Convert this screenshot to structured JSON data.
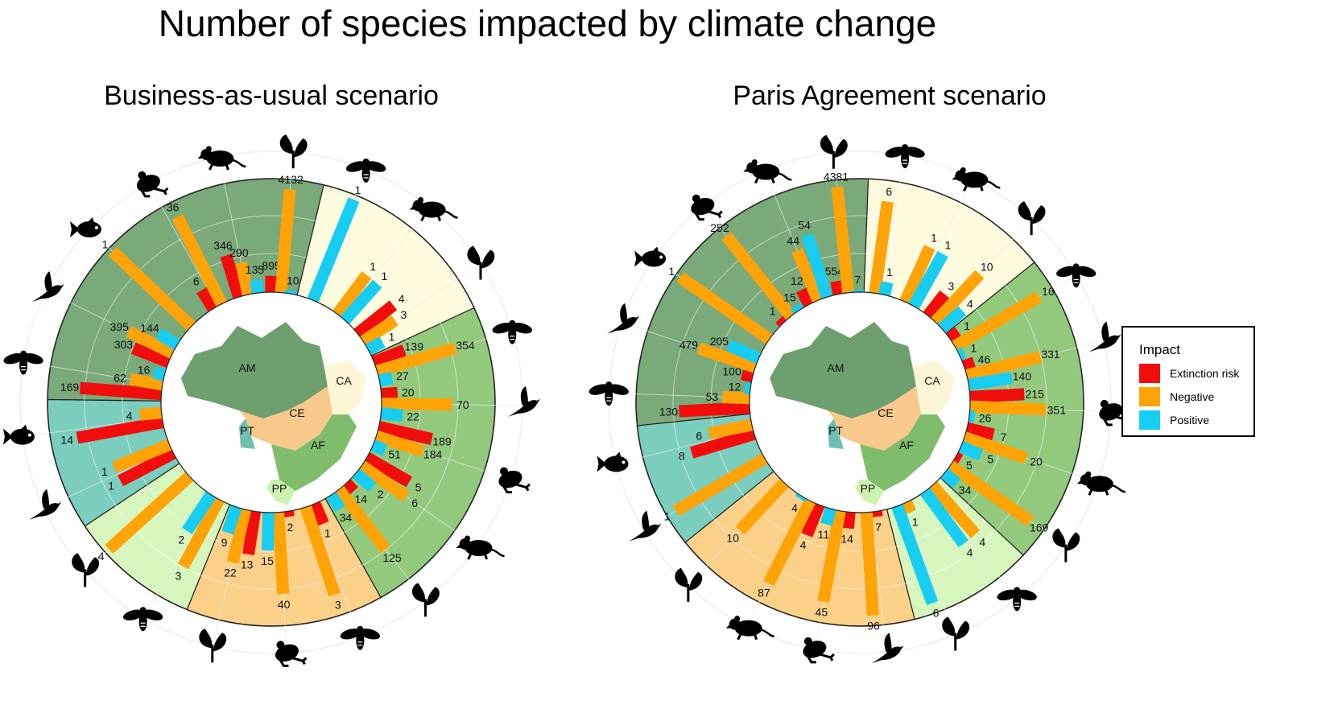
{
  "title": "Number of species impacted by climate change",
  "legend": {
    "title": "Impact",
    "items": [
      {
        "key": "extinction",
        "label": "Extinction risk",
        "color": "#f20d0d"
      },
      {
        "key": "negative",
        "label": "Negative",
        "color": "#ffa306"
      },
      {
        "key": "positive",
        "label": "Positive",
        "color": "#17cdf2"
      }
    ]
  },
  "regions": {
    "AM": {
      "label": "AM",
      "sector_color": "#7aa97a",
      "map_color": "#6e9f6e"
    },
    "CA": {
      "label": "CA",
      "sector_color": "#fefbdf",
      "map_color": "#fcf6d6"
    },
    "AF": {
      "label": "AF",
      "sector_color": "#93c97d",
      "map_color": "#7fbd6c"
    },
    "CE": {
      "label": "CE",
      "sector_color": "#fbd089",
      "map_color": "#f8c98a"
    },
    "PP": {
      "label": "PP",
      "sector_color": "#d6f6bd",
      "map_color": "#cdf2b1"
    },
    "PT": {
      "label": "PT",
      "sector_color": "#7bcdbd",
      "map_color": "#6fbfb0"
    }
  },
  "chart_data": [
    {
      "type": "radial-bar",
      "title": "Business-as-usual scenario",
      "groups": [
        {
          "region": "AM",
          "taxon": "plant",
          "bars": [
            {
              "impact": "extinction",
              "value": "895",
              "share": 0.15
            },
            {
              "impact": "negative",
              "value": "4132",
              "share": 0.95
            },
            {
              "impact": "positive",
              "value": "10",
              "share": 0.03
            }
          ]
        },
        {
          "region": "CA",
          "taxon": "bee",
          "bars": [
            {
              "impact": "positive",
              "value": "1",
              "share": 1.0
            }
          ]
        },
        {
          "region": "CA",
          "taxon": "mammal",
          "bars": [
            {
              "impact": "negative",
              "value": "1",
              "share": 0.45
            },
            {
              "impact": "positive",
              "value": "1",
              "share": 0.45
            }
          ]
        },
        {
          "region": "CA",
          "taxon": "plant",
          "bars": [
            {
              "impact": "extinction",
              "value": "4",
              "share": 0.42
            },
            {
              "impact": "negative",
              "value": "3",
              "share": 0.35
            },
            {
              "impact": "positive",
              "value": "1",
              "share": 0.15
            }
          ]
        },
        {
          "region": "AF",
          "taxon": "bee",
          "bars": [
            {
              "impact": "extinction",
              "value": "139",
              "share": 0.3
            },
            {
              "impact": "negative",
              "value": "354",
              "share": 0.75
            },
            {
              "impact": "positive",
              "value": "27",
              "share": 0.12
            }
          ]
        },
        {
          "region": "AF",
          "taxon": "bird",
          "bars": [
            {
              "impact": "extinction",
              "value": "20",
              "share": 0.15
            },
            {
              "impact": "negative",
              "value": "70",
              "share": 0.65
            },
            {
              "impact": "positive",
              "value": "22",
              "share": 0.2
            }
          ]
        },
        {
          "region": "AF",
          "taxon": "frog",
          "bars": [
            {
              "impact": "extinction",
              "value": "189",
              "share": 0.5
            },
            {
              "impact": "negative",
              "value": "184",
              "share": 0.45
            },
            {
              "impact": "positive",
              "value": "51",
              "share": 0.12
            }
          ]
        },
        {
          "region": "AF",
          "taxon": "mammal",
          "bars": [
            {
              "impact": "extinction",
              "value": "5",
              "share": 0.45
            },
            {
              "impact": "negative",
              "value": "6",
              "share": 0.5
            },
            {
              "impact": "positive",
              "value": "2",
              "share": 0.2
            }
          ]
        },
        {
          "region": "AF",
          "taxon": "plant",
          "bars": [
            {
              "impact": "extinction",
              "value": "14",
              "share": 0.1
            },
            {
              "impact": "negative",
              "value": "125",
              "share": 0.7
            },
            {
              "impact": "positive",
              "value": "34",
              "share": 0.15
            }
          ]
        },
        {
          "region": "CE",
          "taxon": "bee",
          "bars": [
            {
              "impact": "extinction",
              "value": "1",
              "share": 0.2
            },
            {
              "impact": "negative",
              "value": "3",
              "share": 0.85
            }
          ]
        },
        {
          "region": "CE",
          "taxon": "frog",
          "bars": [
            {
              "impact": "extinction",
              "value": "2",
              "share": 0.05
            },
            {
              "impact": "negative",
              "value": "40",
              "share": 0.75
            },
            {
              "impact": "positive",
              "value": "15",
              "share": 0.35
            }
          ]
        },
        {
          "region": "CE",
          "taxon": "plant",
          "bars": [
            {
              "impact": "extinction",
              "value": "13",
              "share": 0.4
            },
            {
              "impact": "negative",
              "value": "22",
              "share": 0.5
            },
            {
              "impact": "positive",
              "value": "9",
              "share": 0.25
            }
          ]
        },
        {
          "region": "PP",
          "taxon": "bee",
          "bars": [
            {
              "impact": "negative",
              "value": "3",
              "share": 0.7
            },
            {
              "impact": "positive",
              "value": "2",
              "share": 0.4
            }
          ]
        },
        {
          "region": "PP",
          "taxon": "plant",
          "bars": [
            {
              "impact": "negative",
              "value": "4",
              "share": 1.0
            }
          ]
        },
        {
          "region": "PT",
          "taxon": "bird",
          "bars": [
            {
              "impact": "extinction",
              "value": "1",
              "share": 0.55
            },
            {
              "impact": "negative",
              "value": "1",
              "share": 0.55
            }
          ]
        },
        {
          "region": "PT",
          "taxon": "fish",
          "bars": [
            {
              "impact": "extinction",
              "value": "14",
              "share": 0.8
            },
            {
              "impact": "negative",
              "value": "4",
              "share": 0.2
            }
          ]
        },
        {
          "region": "AM",
          "taxon": "bee",
          "bars": [
            {
              "impact": "extinction",
              "value": "169",
              "share": 0.75
            },
            {
              "impact": "negative",
              "value": "62",
              "share": 0.3
            },
            {
              "impact": "positive",
              "value": "16",
              "share": 0.1
            }
          ]
        },
        {
          "region": "AM",
          "taxon": "bird",
          "bars": [
            {
              "impact": "extinction",
              "value": "303",
              "share": 0.35
            },
            {
              "impact": "negative",
              "value": "395",
              "share": 0.45
            },
            {
              "impact": "positive",
              "value": "144",
              "share": 0.2
            }
          ]
        },
        {
          "region": "AM",
          "taxon": "fish",
          "bars": [
            {
              "impact": "negative",
              "value": "1",
              "share": 1.0
            }
          ]
        },
        {
          "region": "AM",
          "taxon": "frog",
          "bars": [
            {
              "impact": "extinction",
              "value": "6",
              "share": 0.2
            },
            {
              "impact": "negative",
              "value": "36",
              "share": 0.9
            }
          ]
        },
        {
          "region": "AM",
          "taxon": "mammal",
          "bars": [
            {
              "impact": "extinction",
              "value": "346",
              "share": 0.4
            },
            {
              "impact": "negative",
              "value": "290",
              "share": 0.3
            },
            {
              "impact": "positive",
              "value": "135",
              "share": 0.12
            }
          ]
        }
      ]
    },
    {
      "type": "radial-bar",
      "title": "Paris Agreement scenario",
      "groups": [
        {
          "region": "AM",
          "taxon": "plant",
          "bars": [
            {
              "impact": "extinction",
              "value": "554",
              "share": 0.12
            },
            {
              "impact": "negative",
              "value": "4381",
              "share": 0.98
            },
            {
              "impact": "positive",
              "value": "7",
              "share": 0.02
            }
          ]
        },
        {
          "region": "CA",
          "taxon": "bee",
          "bars": [
            {
              "impact": "negative",
              "value": "6",
              "share": 0.85
            },
            {
              "impact": "positive",
              "value": "1",
              "share": 0.12
            }
          ]
        },
        {
          "region": "CA",
          "taxon": "mammal",
          "bars": [
            {
              "impact": "negative",
              "value": "1",
              "share": 0.55
            },
            {
              "impact": "positive",
              "value": "1",
              "share": 0.55
            }
          ]
        },
        {
          "region": "CA",
          "taxon": "plant",
          "bars": [
            {
              "impact": "extinction",
              "value": "3",
              "share": 0.25
            },
            {
              "impact": "negative",
              "value": "10",
              "share": 0.6
            },
            {
              "impact": "positive",
              "value": "4",
              "share": 0.25
            }
          ]
        },
        {
          "region": "AF",
          "taxon": "bee",
          "bars": [
            {
              "impact": "extinction",
              "value": "1",
              "share": 0.1
            },
            {
              "impact": "negative",
              "value": "16",
              "share": 0.9
            },
            {
              "impact": "positive",
              "value": "1",
              "share": 0.05
            }
          ]
        },
        {
          "region": "AF",
          "taxon": "bird",
          "bars": [
            {
              "impact": "extinction",
              "value": "46",
              "share": 0.1
            },
            {
              "impact": "negative",
              "value": "331",
              "share": 0.7
            },
            {
              "impact": "positive",
              "value": "140",
              "share": 0.4
            }
          ]
        },
        {
          "region": "AF",
          "taxon": "frog",
          "bars": [
            {
              "impact": "extinction",
              "value": "215",
              "share": 0.5
            },
            {
              "impact": "negative",
              "value": "351",
              "share": 0.7
            },
            {
              "impact": "positive",
              "value": "26",
              "share": 0.05
            }
          ]
        },
        {
          "region": "AF",
          "taxon": "mammal",
          "bars": [
            {
              "impact": "extinction",
              "value": "7",
              "share": 0.25
            },
            {
              "impact": "negative",
              "value": "20",
              "share": 0.6
            },
            {
              "impact": "positive",
              "value": "5",
              "share": 0.2
            }
          ]
        },
        {
          "region": "AF",
          "taxon": "plant",
          "bars": [
            {
              "impact": "extinction",
              "value": "5",
              "share": 0.05
            },
            {
              "impact": "negative",
              "value": "169",
              "share": 0.9
            },
            {
              "impact": "positive",
              "value": "34",
              "share": 0.15
            }
          ]
        },
        {
          "region": "PP",
          "taxon": "bee",
          "bars": [
            {
              "impact": "negative",
              "value": "4",
              "share": 0.6
            },
            {
              "impact": "positive",
              "value": "4",
              "share": 0.6
            }
          ]
        },
        {
          "region": "PP",
          "taxon": "plant",
          "bars": [
            {
              "impact": "negative",
              "value": "1",
              "share": 0.1
            },
            {
              "impact": "positive",
              "value": "6",
              "share": 0.95
            }
          ]
        },
        {
          "region": "CE",
          "taxon": "bird",
          "bars": [
            {
              "impact": "extinction",
              "value": "7",
              "share": 0.05
            },
            {
              "impact": "negative",
              "value": "96",
              "share": 0.95
            }
          ]
        },
        {
          "region": "CE",
          "taxon": "frog",
          "bars": [
            {
              "impact": "extinction",
              "value": "14",
              "share": 0.15
            },
            {
              "impact": "negative",
              "value": "45",
              "share": 0.85
            },
            {
              "impact": "positive",
              "value": "11",
              "share": 0.15
            }
          ]
        },
        {
          "region": "CE",
          "taxon": "mammal",
          "bars": [
            {
              "impact": "extinction",
              "value": "4",
              "share": 0.3
            },
            {
              "impact": "negative",
              "value": "87",
              "share": 0.85
            },
            {
              "impact": "positive",
              "value": "4",
              "share": 0.03
            }
          ]
        },
        {
          "region": "CE",
          "taxon": "plant",
          "bars": [
            {
              "impact": "negative",
              "value": "10",
              "share": 0.6
            }
          ]
        },
        {
          "region": "PT",
          "taxon": "bird",
          "bars": [
            {
              "impact": "negative",
              "value": "1",
              "share": 0.95
            }
          ]
        },
        {
          "region": "PT",
          "taxon": "fish",
          "bars": [
            {
              "impact": "extinction",
              "value": "8",
              "share": 0.6
            },
            {
              "impact": "negative",
              "value": "6",
              "share": 0.4
            }
          ]
        },
        {
          "region": "AM",
          "taxon": "bee",
          "bars": [
            {
              "impact": "extinction",
              "value": "130",
              "share": 0.65
            },
            {
              "impact": "negative",
              "value": "53",
              "share": 0.25
            },
            {
              "impact": "positive",
              "value": "12",
              "share": 0.05
            }
          ]
        },
        {
          "region": "AM",
          "taxon": "bird",
          "bars": [
            {
              "impact": "extinction",
              "value": "100",
              "share": 0.1
            },
            {
              "impact": "negative",
              "value": "479",
              "share": 0.55
            },
            {
              "impact": "positive",
              "value": "205",
              "share": 0.3
            }
          ]
        },
        {
          "region": "AM",
          "taxon": "fish",
          "bars": [
            {
              "impact": "negative",
              "value": "1",
              "share": 1.0
            }
          ]
        },
        {
          "region": "AM",
          "taxon": "frog",
          "bars": [
            {
              "impact": "extinction",
              "value": "1",
              "share": 0.05
            },
            {
              "impact": "negative",
              "value": "252",
              "share": 0.95
            },
            {
              "impact": "positive",
              "value": "15",
              "share": 0.05
            }
          ]
        },
        {
          "region": "AM",
          "taxon": "mammal",
          "bars": [
            {
              "impact": "extinction",
              "value": "12",
              "share": 0.15
            },
            {
              "impact": "negative",
              "value": "44",
              "share": 0.5
            },
            {
              "impact": "positive",
              "value": "54",
              "share": 0.6
            }
          ]
        }
      ]
    }
  ]
}
